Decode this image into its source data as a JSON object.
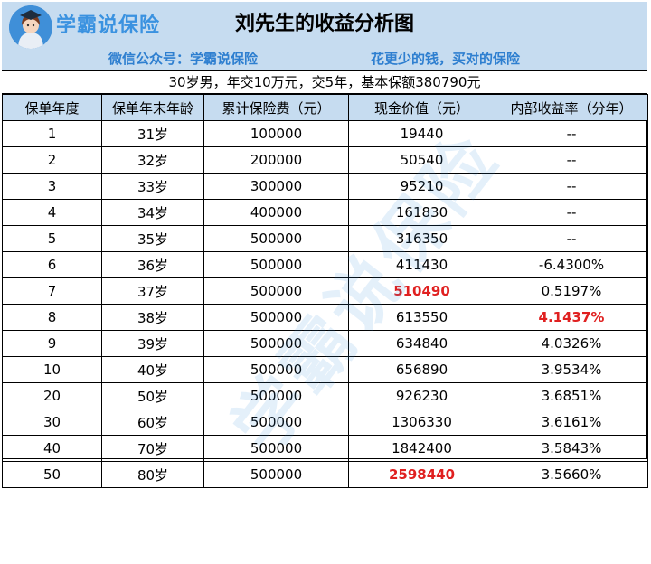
{
  "brand": {
    "name": "学霸说保险"
  },
  "header": {
    "title": "刘先生的收益分析图",
    "wechat": "微信公众号：学霸说保险",
    "slogan": "花更少的钱，买对的保险"
  },
  "summary": "30岁男，年交10万元，交5年，基本保额380790元",
  "table": {
    "columns": [
      "保单年度",
      "保单年末年龄",
      "累计保险费（元）",
      "现金价值（元）",
      "内部收益率（分年）"
    ],
    "rows": [
      [
        "1",
        "31岁",
        "100000",
        "19440",
        "--"
      ],
      [
        "2",
        "32岁",
        "200000",
        "50540",
        "--"
      ],
      [
        "3",
        "33岁",
        "300000",
        "95210",
        "--"
      ],
      [
        "4",
        "34岁",
        "400000",
        "161830",
        "--"
      ],
      [
        "5",
        "35岁",
        "500000",
        "316350",
        "--"
      ],
      [
        "6",
        "36岁",
        "500000",
        "411430",
        "-6.4300%"
      ],
      [
        "7",
        "37岁",
        "500000",
        "510490",
        "0.5197%"
      ],
      [
        "8",
        "38岁",
        "500000",
        "613550",
        "4.1437%"
      ],
      [
        "9",
        "39岁",
        "500000",
        "634840",
        "4.0326%"
      ],
      [
        "10",
        "40岁",
        "500000",
        "656890",
        "3.9534%"
      ],
      [
        "20",
        "50岁",
        "500000",
        "926230",
        "3.6851%"
      ],
      [
        "30",
        "60岁",
        "500000",
        "1306330",
        "3.6161%"
      ],
      [
        "40",
        "70岁",
        "500000",
        "1842400",
        "3.5843%"
      ],
      [
        "50",
        "80岁",
        "500000",
        "2598440",
        "3.5660%"
      ]
    ],
    "highlight_color": "#e02020",
    "header_bg": "#c6dcf0"
  },
  "watermark": "学霸说保险"
}
